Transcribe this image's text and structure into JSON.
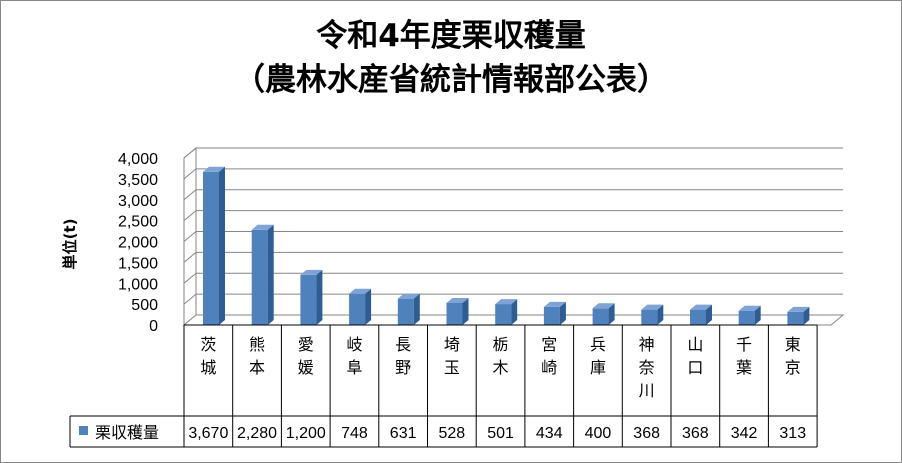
{
  "chart_data": {
    "type": "bar",
    "title": [
      "令和4年度栗収穫量",
      "（農林水産省統計情報部公表）"
    ],
    "ylabel": "単位(t)",
    "ylim": [
      0,
      4000
    ],
    "yticks": [
      "4,000",
      "3,500",
      "3,000",
      "2,500",
      "2,000",
      "1,500",
      "1,000",
      "500",
      "0"
    ],
    "ytick_values": [
      4000,
      3500,
      3000,
      2500,
      2000,
      1500,
      1000,
      500,
      0
    ],
    "categories": [
      "茨城",
      "熊本",
      "愛媛",
      "岐阜",
      "長野",
      "埼玉",
      "栃木",
      "宮崎",
      "兵庫",
      "神奈川",
      "山口",
      "千葉",
      "東京"
    ],
    "series": [
      {
        "name": "栗収穫量",
        "values": [
          3670,
          2280,
          1200,
          748,
          631,
          528,
          501,
          434,
          400,
          368,
          368,
          342,
          313
        ],
        "labels": [
          "3,670",
          "2,280",
          "1,200",
          "748",
          "631",
          "528",
          "501",
          "434",
          "400",
          "368",
          "368",
          "342",
          "313"
        ]
      }
    ],
    "legend": "table-left",
    "grid": true,
    "colors": {
      "bar_front": "#4F81BD",
      "bar_side": "#2E5C93",
      "bar_top": "#7EA3D4",
      "grid": "#868686"
    }
  }
}
